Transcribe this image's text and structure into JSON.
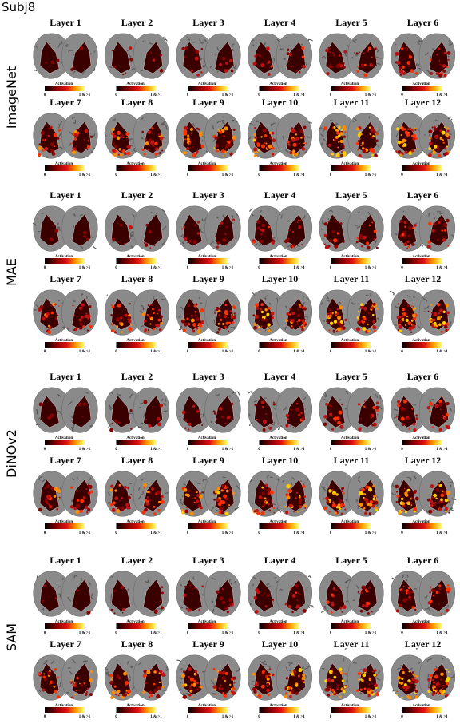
{
  "title": "Subj8",
  "colorbar": {
    "title": "Activation",
    "min": "0",
    "max": "1 & >1"
  },
  "groups": [
    {
      "name": "ImageNet",
      "layers": [
        "Layer 1",
        "Layer 2",
        "Layer 3",
        "Layer 4",
        "Layer 5",
        "Layer 6",
        "Layer 7",
        "Layer 8",
        "Layer 9",
        "Layer 10",
        "Layer 11",
        "Layer 12"
      ]
    },
    {
      "name": "MAE",
      "layers": [
        "Layer 1",
        "Layer 2",
        "Layer 3",
        "Layer 4",
        "Layer 5",
        "Layer 6",
        "Layer 7",
        "Layer 8",
        "Layer 9",
        "Layer 10",
        "Layer 11",
        "Layer 12"
      ]
    },
    {
      "name": "DiNOv2",
      "layers": [
        "Layer 1",
        "Layer 2",
        "Layer 3",
        "Layer 4",
        "Layer 5",
        "Layer 6",
        "Layer 7",
        "Layer 8",
        "Layer 9",
        "Layer 10",
        "Layer 11",
        "Layer 12"
      ]
    },
    {
      "name": "SAM",
      "layers": [
        "Layer 1",
        "Layer 2",
        "Layer 3",
        "Layer 4",
        "Layer 5",
        "Layer 6",
        "Layer 7",
        "Layer 8",
        "Layer 9",
        "Layer 10",
        "Layer 11",
        "Layer 12"
      ]
    }
  ]
}
